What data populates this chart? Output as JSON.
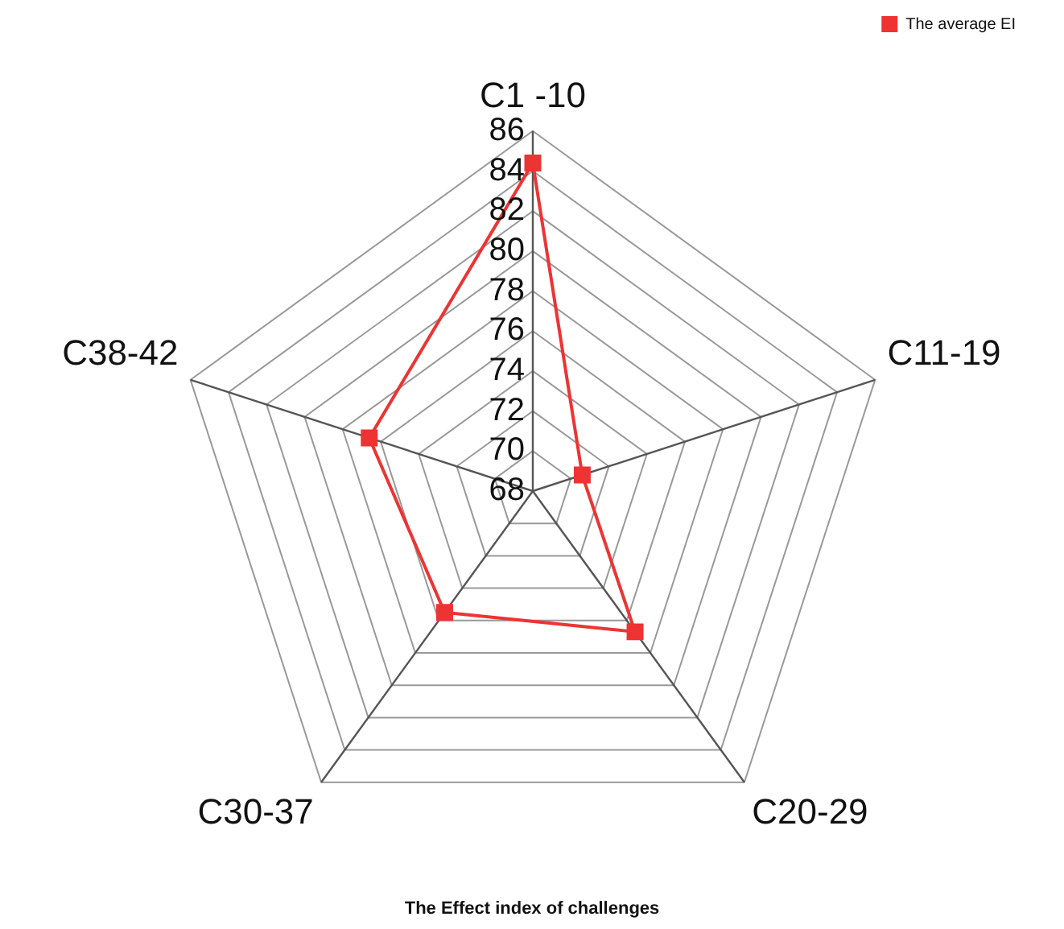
{
  "chart_data": {
    "type": "radar",
    "title": "The Effect index of challenges",
    "categories": [
      "C1 -10",
      "C11-19",
      "C20-29",
      "C30-37",
      "C38-42"
    ],
    "series": [
      {
        "name": "The average EI",
        "color": "#ee3333",
        "values": [
          84.4,
          70.6,
          76.7,
          75.5,
          76.6
        ]
      }
    ],
    "ylim": [
      68,
      86
    ],
    "yticks": [
      68,
      70,
      72,
      74,
      76,
      78,
      80,
      82,
      84,
      86
    ],
    "grid": true,
    "legend": "top right",
    "marker": "square",
    "line_style": "solid"
  }
}
